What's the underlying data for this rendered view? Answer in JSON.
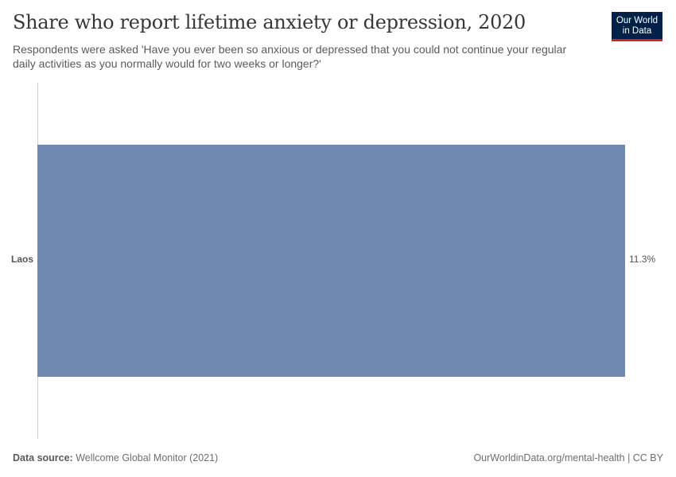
{
  "header": {
    "title": "Share who report lifetime anxiety or depression, 2020",
    "subtitle": "Respondents were asked 'Have you ever been so anxious or depressed that you could not continue your regular daily activities as you normally would for two weeks or longer?'"
  },
  "logo": {
    "line1": "Our World",
    "line2": "in Data",
    "bg_color": "#002147",
    "accent_color": "#ce261e"
  },
  "footer": {
    "source_label": "Data source:",
    "source_value": " Wellcome Global Monitor (2021)",
    "url": "OurWorldinData.org/mental-health | CC BY"
  },
  "chart_data": {
    "type": "bar",
    "orientation": "horizontal",
    "title": "Share who report lifetime anxiety or depression, 2020",
    "subtitle": "Respondents were asked 'Have you ever been so anxious or depressed that you could not continue your regular daily activities as you normally would for two weeks or longer?'",
    "categories": [
      "Laos"
    ],
    "values": [
      11.3
    ],
    "value_labels": [
      "11.3%"
    ],
    "unit": "%",
    "bar_color": "#6f89b1",
    "xlabel": "",
    "ylabel": "",
    "grid": false,
    "legend": null
  }
}
